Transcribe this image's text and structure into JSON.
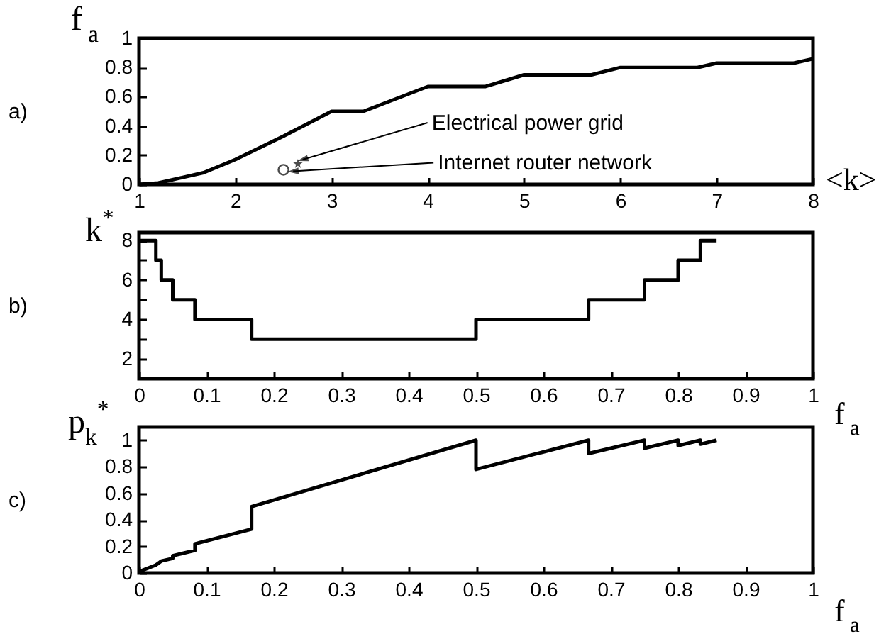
{
  "chart_data": [
    {
      "type": "line",
      "xlabel": "<k>",
      "ylabel": "f$_{a}$",
      "xlim": [
        1,
        8
      ],
      "xticks": [
        1,
        2,
        3,
        4,
        5,
        6,
        7,
        8
      ],
      "ylim": [
        0,
        1
      ],
      "yticks": [
        0,
        0.2,
        0.4,
        0.6,
        0.8,
        1
      ],
      "annotations": [
        "a)",
        {
          "text": "Electrical power grid",
          "x": 2.7,
          "y": 0.17
        },
        {
          "text": "Internet router network",
          "x": 2.6,
          "y": 0.09
        }
      ],
      "series": [
        {
          "color": "#000000",
          "x": [
            1,
            1.2,
            1.67,
            2,
            2.5,
            3,
            3.33,
            4,
            4.6,
            5,
            5.7,
            6,
            6.8,
            7,
            7.8,
            8
          ],
          "values": [
            0,
            0.01,
            0.08,
            0.17,
            0.33,
            0.5,
            0.5,
            0.67,
            0.67,
            0.75,
            0.75,
            0.8,
            0.8,
            0.83,
            0.83,
            0.86
          ]
        },
        {
          "type": "scatter",
          "marker": "circle",
          "color": "#000000",
          "x": [
            2.5
          ],
          "values": [
            0.1
          ]
        },
        {
          "type": "scatter",
          "marker": "star",
          "color": "#000000",
          "x": [
            2.65
          ],
          "values": [
            0.14
          ]
        }
      ]
    },
    {
      "type": "step",
      "xlabel": "f$_{a}$",
      "ylabel": "k$^{*}$",
      "xlim": [
        0,
        1
      ],
      "xticks": [
        0,
        0.1,
        0.2,
        0.3,
        0.4,
        0.5,
        0.6,
        0.7,
        0.8,
        0.9,
        1
      ],
      "ylim": [
        1,
        8.4
      ],
      "yticks": [
        2,
        {
          "value": 3,
          "label": null
        },
        4,
        {
          "value": 5,
          "label": null
        },
        6,
        {
          "value": 7,
          "label": null
        },
        8
      ],
      "annotations": [
        "b)"
      ],
      "series": [
        {
          "color": "#000000",
          "x": [
            0,
            0.025,
            0.033,
            0.05,
            0.083,
            0.167,
            0.5,
            0.667,
            0.75,
            0.8,
            0.833,
            0.857
          ],
          "values": [
            8,
            7,
            6,
            5,
            4,
            3,
            4,
            5,
            6,
            7,
            8,
            8
          ]
        }
      ]
    },
    {
      "type": "line",
      "xlabel": "f$_{a}$",
      "ylabel": "p$_{k}$$^{*}$",
      "xlim": [
        0,
        1
      ],
      "xticks": [
        0,
        0.1,
        0.2,
        0.3,
        0.4,
        0.5,
        0.6,
        0.7,
        0.8,
        0.9,
        1
      ],
      "ylim": [
        0,
        1.1
      ],
      "yticks": [
        0,
        0.2,
        0.4,
        0.6,
        0.8,
        1
      ],
      "annotations": [
        "c)"
      ],
      "series": [
        {
          "color": "#000000",
          "x": [
            0,
            0.025,
            0.033,
            0.05,
            0.05,
            0.083,
            0.083,
            0.167,
            0.167,
            0.5,
            0.5,
            0.667,
            0.667,
            0.75,
            0.75,
            0.8,
            0.8,
            0.833,
            0.833,
            0.857
          ],
          "values": [
            0.01,
            0.06,
            0.09,
            0.11,
            0.13,
            0.17,
            0.22,
            0.33,
            0.5,
            1,
            0.78,
            1,
            0.9,
            1,
            0.94,
            1,
            0.96,
            1,
            0.97,
            1
          ]
        }
      ]
    }
  ]
}
